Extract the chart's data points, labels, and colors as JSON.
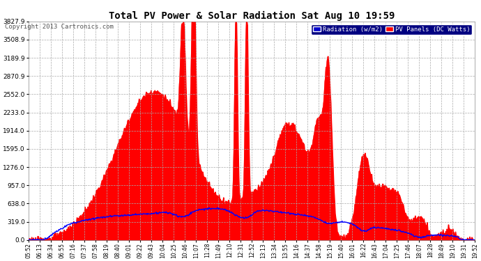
{
  "title": "Total PV Power & Solar Radiation Sat Aug 10 19:59",
  "copyright": "Copyright 2013 Cartronics.com",
  "legend_radiation": "Radiation (w/m2)",
  "legend_pv": "PV Panels (DC Watts)",
  "bg_color": "#ffffff",
  "plot_bg_color": "#ffffff",
  "radiation_color": "#0000ff",
  "pv_color": "#ff0000",
  "pv_fill_color": "#ff0000",
  "grid_color": "#aaaaaa",
  "text_color": "#000000",
  "title_color": "#000000",
  "copyright_color": "#555555",
  "ymax": 3827.9,
  "ymin": 0.0,
  "yticks": [
    0.0,
    319.0,
    638.0,
    957.0,
    1276.0,
    1595.0,
    1914.0,
    2233.0,
    2552.0,
    2870.9,
    3189.9,
    3508.9,
    3827.9
  ],
  "ytick_labels": [
    "0.0",
    "319.0",
    "638.0",
    "957.0",
    "1276.0",
    "1595.0",
    "1914.0",
    "2233.0",
    "2552.0",
    "2870.9",
    "3189.9",
    "3508.9",
    "3827.9"
  ],
  "xtick_labels": [
    "05:52",
    "06:13",
    "06:34",
    "06:55",
    "07:16",
    "07:37",
    "07:58",
    "08:19",
    "08:40",
    "09:01",
    "09:22",
    "09:43",
    "10:04",
    "10:25",
    "10:46",
    "11:07",
    "11:28",
    "11:49",
    "12:10",
    "12:31",
    "12:52",
    "13:13",
    "13:34",
    "13:55",
    "14:16",
    "14:37",
    "14:58",
    "15:19",
    "15:40",
    "16:01",
    "16:22",
    "16:43",
    "17:04",
    "17:25",
    "17:46",
    "18:07",
    "18:28",
    "18:49",
    "19:10",
    "19:31",
    "19:52"
  ],
  "figsize": [
    6.9,
    3.75
  ],
  "dpi": 100
}
